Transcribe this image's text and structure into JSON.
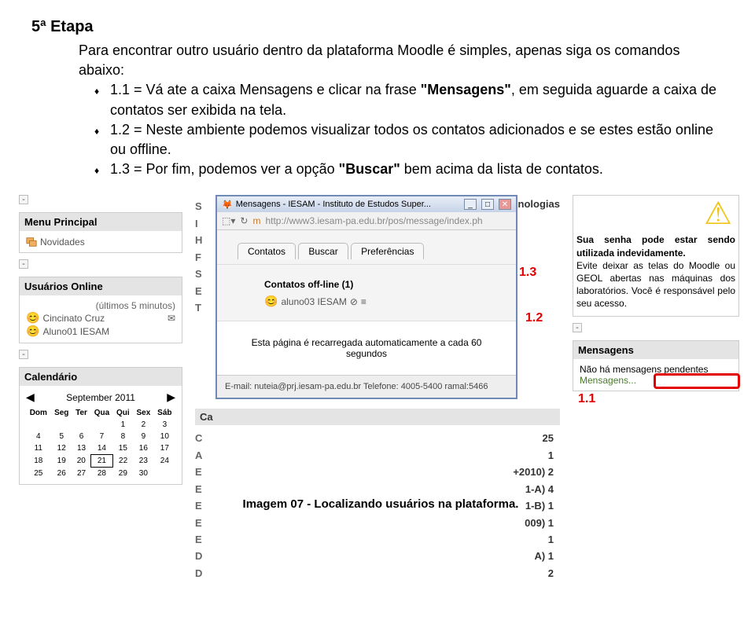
{
  "doc": {
    "heading": "5ª Etapa",
    "intro1": "Para encontrar outro usuário dentro da plataforma Moodle é simples, apenas siga os comandos abaixo:",
    "b1_pre": "1.1 = Vá ate a caixa Mensagens e clicar na frase ",
    "b1_bold": "\"Mensagens\"",
    "b1_post": ", em seguida aguarde a caixa de contatos ser exibida na tela.",
    "b2": "1.2 = Neste ambiente podemos visualizar todos os contatos adicionados e se estes estão online ou offline.",
    "b3_pre": "1.3 = Por fim, podemos ver a opção ",
    "b3_bold": "\"Buscar\"",
    "b3_post": " bem acima da lista de contatos."
  },
  "left": {
    "menuPrincipal": "Menu Principal",
    "novidades": "Novidades",
    "usuariosOnline": "Usuários Online",
    "ultimos": "(últimos 5 minutos)",
    "user1": "Cincinato Cruz",
    "user2": "Aluno01 IESAM",
    "calendarioTitle": "Calendário",
    "month": "September 2011",
    "dow": [
      "Dom",
      "Seg",
      "Ter",
      "Qua",
      "Qui",
      "Sex",
      "Sáb"
    ],
    "weeks": [
      [
        "",
        "",
        "",
        "",
        "1",
        "2",
        "3"
      ],
      [
        "4",
        "5",
        "6",
        "7",
        "8",
        "9",
        "10"
      ],
      [
        "11",
        "12",
        "13",
        "14",
        "15",
        "16",
        "17"
      ],
      [
        "18",
        "19",
        "20",
        "21",
        "22",
        "23",
        "24"
      ],
      [
        "25",
        "26",
        "27",
        "28",
        "29",
        "30",
        ""
      ]
    ],
    "today": "21"
  },
  "popup": {
    "title": "Mensagens - IESAM - Instituto de Estudos Super...",
    "url": "http://www3.iesam-pa.edu.br/pos/message/index.ph",
    "tabContatos": "Contatos",
    "tabBuscar": "Buscar",
    "tabPref": "Preferências",
    "contactsHeader": "Contatos off-line (1)",
    "contactName": "aluno03 IESAM",
    "autoReload": "Esta página é recarregada automaticamente a cada 60 segundos",
    "footEmail": "E-mail: nuteia@prj.iesam-pa.edu.br Telefone: 4005-5400 ramal:5466"
  },
  "mid": {
    "tecno": "de Tecnologias",
    "headerS": "S",
    "headerI": "I",
    "letters": [
      "H",
      "F",
      "S",
      "E",
      "T"
    ],
    "ca": "Ca",
    "letters2": [
      "C",
      "A",
      "E",
      "E",
      "E",
      "E",
      "E",
      "D",
      "D"
    ],
    "rights": [
      "25",
      "1",
      "+2010)   2",
      "1-A)   4",
      "1-B)   1",
      "009)   1",
      "1",
      "A)   1",
      "2"
    ]
  },
  "right": {
    "warnTitle": "Sua senha pode estar sendo utilizada indevidamente.",
    "warnBody": "Evite deixar as telas do Moodle ou GEOL abertas nas máquinas dos laboratórios. Você é responsável pelo seu acesso.",
    "mensagensTitle": "Mensagens",
    "noMsg": "Não há mensagens pendentes",
    "linkMsg": "Mensagens..."
  },
  "labels": {
    "l11": "1.1",
    "l12": "1.2",
    "l13": "1.3"
  },
  "caption": "Imagem 07 - Localizando usuários na plataforma."
}
